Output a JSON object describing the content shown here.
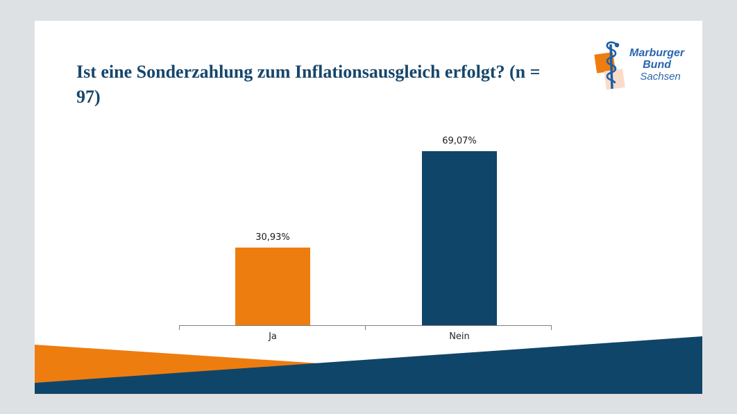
{
  "page": {
    "background_color": "#DEE1E3",
    "slide_background_color": "#FFFFFF"
  },
  "title": {
    "text": "Ist eine Sonderzahlung zum Inflationsausgleich erfolgt? (n = 97)",
    "color": "#17466B"
  },
  "logo": {
    "line1": "Marburger",
    "line2": "Bund",
    "line3": "Sachsen",
    "text_color": "#2A66AD",
    "staff_color": "#1E5FA7",
    "square_orange": "#EE7D0F",
    "square_peach": "#F9DCC8"
  },
  "chart_data": {
    "type": "bar",
    "title": "Ist eine Sonderzahlung zum Inflationsausgleich erfolgt? (n = 97)",
    "categories": [
      "Ja",
      "Nein"
    ],
    "values": [
      30.93,
      69.07
    ],
    "value_labels": [
      "30,93%",
      "69,07%"
    ],
    "bar_colors": [
      "#EE7D0F",
      "#10456A"
    ],
    "xlabel": "",
    "ylabel": "",
    "ylim": [
      0,
      75
    ],
    "grid": false,
    "legend": false,
    "axis_color": "#808080",
    "label_color": "#1A1A1A"
  },
  "decoration": {
    "wave_orange_color": "#EE7D0F",
    "wave_blue_color": "#10456A"
  }
}
